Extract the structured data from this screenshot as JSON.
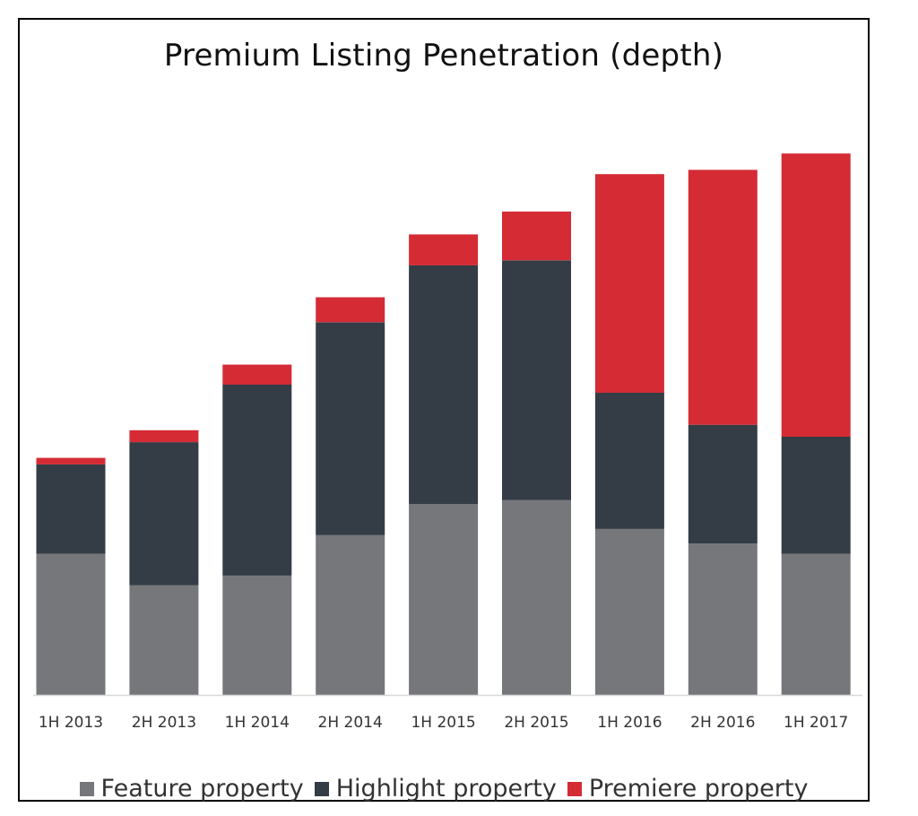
{
  "chart_data": {
    "type": "bar",
    "stacked": true,
    "title": "Premium Listing Penetration (depth)",
    "xlabel": "",
    "ylabel": "",
    "ylim": [
      0,
      100
    ],
    "grid": false,
    "legend_position": "bottom",
    "categories": [
      "1H 2013",
      "2H 2013",
      "1H 2014",
      "2H 2014",
      "1H 2015",
      "2H 2015",
      "1H 2016",
      "2H 2016",
      "1H 2017"
    ],
    "series": [
      {
        "name": "Feature property",
        "color": "#76777b",
        "values": [
          26.0,
          20.2,
          22.0,
          29.5,
          35.2,
          35.9,
          30.6,
          27.9,
          26.0
        ]
      },
      {
        "name": "Highlight property",
        "color": "#343c45",
        "values": [
          16.5,
          26.4,
          35.2,
          39.2,
          44.0,
          44.2,
          25.1,
          21.9,
          21.6
        ]
      },
      {
        "name": "Premiere property",
        "color": "#d52b35",
        "values": [
          1.2,
          2.2,
          3.7,
          4.6,
          5.7,
          9.0,
          40.3,
          47.0,
          52.2
        ]
      }
    ]
  }
}
